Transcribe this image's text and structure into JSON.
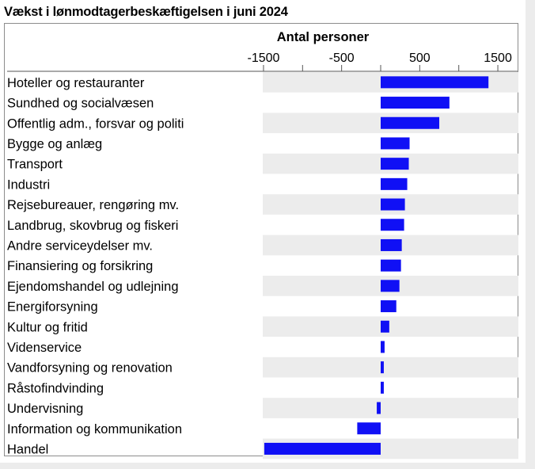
{
  "title": "Vækst i lønmodtagerbeskæftigelsen i juni 2024",
  "colors": {
    "bar": "#1010f5",
    "band": "#ececec",
    "frame": "#8c8c8c",
    "background": "#ffffff"
  },
  "chart_data": {
    "type": "bar",
    "orientation": "horizontal",
    "title": "Vækst i lønmodtagerbeskæftigelsen i juni 2024",
    "axis_title": "Antal personer",
    "axis_position": "top",
    "xlim": [
      -1500,
      1750
    ],
    "ticks": [
      -1500,
      -1000,
      -500,
      0,
      500,
      1000,
      1500
    ],
    "tick_labels": [
      "-1500",
      "",
      "-500",
      "",
      "500",
      "",
      "1500"
    ],
    "categories": [
      "Hoteller og restauranter",
      "Sundhed og socialvæsen",
      "Offentlig adm., forsvar og politi",
      "Bygge og anlæg",
      "Transport",
      "Industri",
      "Rejsebureauer, rengøring mv.",
      "Landbrug, skovbrug og fiskeri",
      "Andre serviceydelser mv.",
      "Finansiering og forsikring",
      "Ejendomshandel og udlejning",
      "Energiforsyning",
      "Kultur og fritid",
      "Videnservice",
      "Vandforsyning og renovation",
      "Råstofindvinding",
      "Undervisning",
      "Information og kommunikation",
      "Handel"
    ],
    "values": [
      1380,
      880,
      750,
      370,
      360,
      340,
      310,
      300,
      270,
      260,
      240,
      200,
      110,
      50,
      40,
      40,
      -50,
      -300,
      -1490
    ],
    "grid": "alternating row bands"
  }
}
